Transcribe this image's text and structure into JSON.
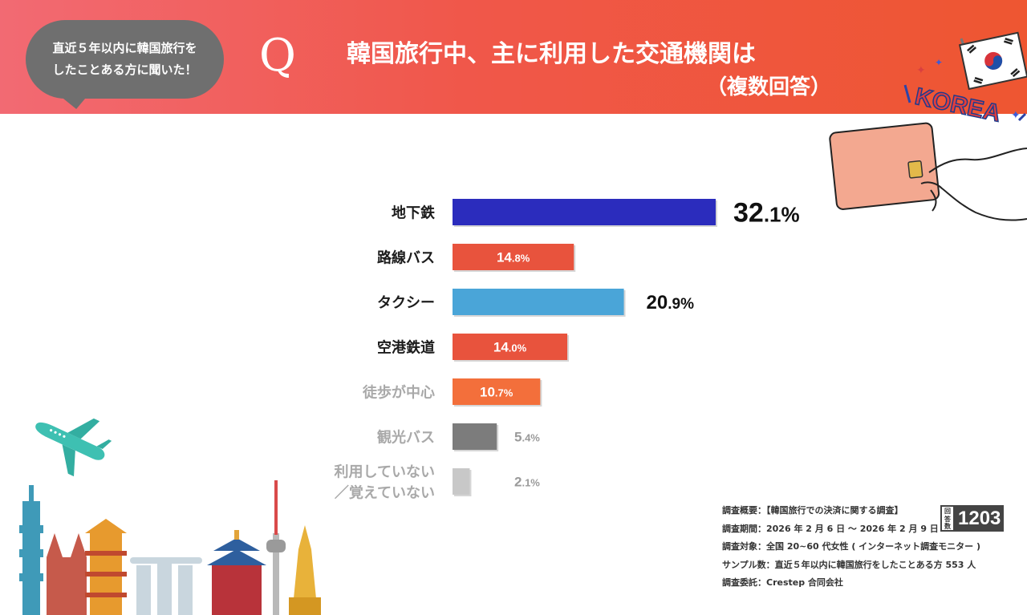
{
  "header": {
    "bubble_line1": "直近５年以内に韓国旅行を",
    "bubble_line2": "したことある方に聞いた！",
    "q_letter": "Q",
    "title_line1": "韓国旅行中、主に利用した交通機関は",
    "title_line2": "（複数回答）",
    "korea_logo_text": "KOREA"
  },
  "chart_data": {
    "type": "bar",
    "orientation": "horizontal",
    "categories": [
      "地下鉄",
      "路線バス",
      "タクシー",
      "空港鉄道",
      "徒歩が中心",
      "観光バス",
      "利用していない／覚えていない"
    ],
    "category_lines": [
      [
        "地下鉄"
      ],
      [
        "路線バス"
      ],
      [
        "タクシー"
      ],
      [
        "空港鉄道"
      ],
      [
        "徒歩が中心"
      ],
      [
        "観光バス"
      ],
      [
        "利用していない",
        "／覚えていない"
      ]
    ],
    "values": [
      32.1,
      14.8,
      20.9,
      14.0,
      10.7,
      5.4,
      2.1
    ],
    "value_int": [
      "32",
      "14",
      "20",
      "14",
      "10",
      "5",
      "2"
    ],
    "value_dec": [
      ".1%",
      ".8%",
      ".9%",
      ".0%",
      ".7%",
      ".4%",
      ".1%"
    ],
    "colors": [
      "#2b2cbd",
      "#e8533d",
      "#4aa5d8",
      "#e8533d",
      "#f36f3b",
      "#7c7c7c",
      "#c8c8c8"
    ],
    "label_placement": [
      "outside",
      "inside",
      "outside",
      "inside",
      "inside",
      "outside",
      "outside"
    ],
    "highlight": [
      true,
      true,
      true,
      true,
      false,
      false,
      false
    ],
    "xlim": [
      0,
      32.1
    ],
    "grid": false,
    "legend": "none",
    "title": "韓国旅行中、主に利用した交通機関は（複数回答）"
  },
  "footer": {
    "line1": "調査概要：【韓国旅行での決済に関する調査】",
    "line2": "調査期間：2026 年 2 月 6 日 ～ 2026 年 2 月 9 日",
    "line3": "調査対象：全国 20~60 代女性 ( インターネット調査モニター )",
    "line4": "サンプル数：直近５年以内に韓国旅行をしたことある方 553 人",
    "line5": "調査委託：Crestep 合同会社",
    "badge_label": "回答数",
    "badge_count": "1203"
  }
}
